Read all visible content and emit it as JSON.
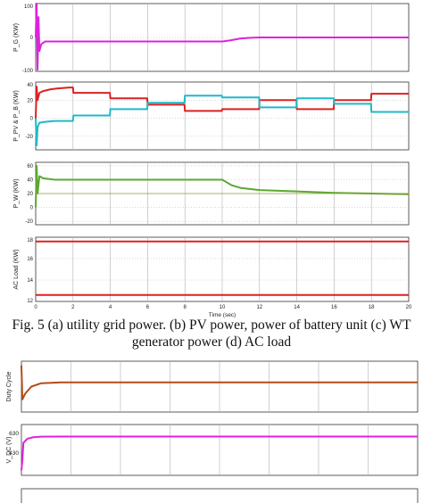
{
  "figure_top": {
    "xlabel": "Time (sec)",
    "xticks": [
      0,
      2,
      4,
      6,
      8,
      10,
      12,
      14,
      16,
      18,
      20
    ]
  },
  "caption": {
    "line1": "Fig. 5 (a) utility grid power. (b) PV power, power of battery unit (c) WT",
    "line2": "generator power (d) AC load"
  },
  "colors": {
    "magenta": "#e020e0",
    "red": "#dd2020",
    "cyan": "#20b8c8",
    "green": "#5aa832",
    "brown": "#b54a1a",
    "grid": "#b0b0b0",
    "axis": "#333333"
  },
  "chart_data": [
    {
      "type": "line",
      "ylabel": "P_G (KW)",
      "xlim": [
        0,
        20
      ],
      "ylim": [
        -100,
        100
      ],
      "yticks": [
        -100,
        0,
        100
      ],
      "series": [
        {
          "color": "magenta",
          "x": [
            0,
            0.05,
            0.1,
            0.15,
            0.2,
            0.3,
            0.5,
            2,
            4,
            6,
            8,
            10,
            10.5,
            11,
            11.5,
            12,
            14,
            16,
            18,
            20
          ],
          "y": [
            0,
            100,
            -95,
            60,
            -40,
            -20,
            -12,
            -12,
            -12,
            -12,
            -12,
            -12,
            -8,
            -3,
            -1,
            0,
            0,
            0,
            0,
            0
          ]
        }
      ]
    },
    {
      "type": "line",
      "ylabel": "P_PV & P_B (KW)",
      "xlim": [
        0,
        20
      ],
      "ylim": [
        -35,
        40
      ],
      "yticks": [
        -20,
        0,
        20,
        40
      ],
      "series": [
        {
          "color": "red",
          "x": [
            0,
            0.05,
            0.1,
            0.2,
            0.4,
            0.8,
            1.2,
            1.8,
            2,
            2.02,
            3.98,
            4,
            4.02,
            5.98,
            6,
            6.02,
            7.98,
            8,
            8.02,
            9.98,
            10,
            10.02,
            11.98,
            12,
            12.02,
            13.98,
            14,
            14.02,
            15.98,
            16,
            16.02,
            17.98,
            18,
            18.02,
            20
          ],
          "y": [
            0,
            35,
            20,
            28,
            30,
            32,
            33,
            34,
            34,
            28,
            28,
            22,
            22,
            22,
            15,
            15,
            15,
            8,
            8,
            8,
            10,
            10,
            10,
            20,
            20,
            20,
            10,
            10,
            10,
            20,
            20,
            20,
            27,
            27,
            27
          ]
        },
        {
          "color": "cyan",
          "x": [
            0,
            0.05,
            0.1,
            0.2,
            0.5,
            1,
            1.5,
            2,
            2.02,
            3.98,
            4,
            4.02,
            5.98,
            6,
            6.02,
            7.98,
            8,
            8.02,
            9.98,
            10,
            10.02,
            11.98,
            12,
            12.02,
            13.98,
            14,
            14.02,
            15.98,
            16,
            16.02,
            17.98,
            18,
            18.02,
            20
          ],
          "y": [
            0,
            -30,
            -10,
            -5,
            -4,
            -3,
            -3,
            -3,
            3,
            3,
            10,
            10,
            10,
            17,
            17,
            17,
            25,
            25,
            25,
            23,
            23,
            23,
            12,
            12,
            12,
            22,
            22,
            22,
            16,
            16,
            16,
            7,
            7,
            7
          ]
        }
      ]
    },
    {
      "type": "line",
      "ylabel": "P_W (KW)",
      "xlim": [
        0,
        20
      ],
      "ylim": [
        -25,
        65
      ],
      "yticks": [
        -20,
        0,
        20,
        40,
        60
      ],
      "series": [
        {
          "color": "green",
          "x": [
            0,
            0.05,
            0.1,
            0.2,
            0.4,
            1,
            2,
            4,
            6,
            8,
            10,
            10.5,
            11,
            12,
            14,
            16,
            18,
            20
          ],
          "y": [
            0,
            60,
            20,
            45,
            42,
            40,
            40,
            40,
            40,
            40,
            40,
            32,
            28,
            25,
            23,
            21,
            20,
            19
          ]
        },
        {
          "color": "olive",
          "x": [
            0,
            20
          ],
          "y": [
            20,
            20
          ]
        }
      ]
    },
    {
      "type": "line",
      "ylabel": "AC Load (KW)",
      "xlim": [
        0,
        20
      ],
      "ylim": [
        12,
        18
      ],
      "yticks": [
        12,
        14,
        16,
        18
      ],
      "series": [
        {
          "color": "red",
          "x": [
            0,
            20
          ],
          "y": [
            12.6,
            12.6
          ]
        },
        {
          "color": "red",
          "x": [
            0,
            20
          ],
          "y": [
            17.6,
            17.6
          ]
        }
      ]
    },
    {
      "type": "line",
      "ylabel": "Duty Cycle",
      "xlim": [
        0,
        20
      ],
      "ylim": [
        0,
        0.6
      ],
      "series": [
        {
          "color": "brown",
          "x": [
            0,
            0.05,
            0.2,
            0.5,
            1,
            2,
            4,
            6,
            8,
            10,
            12,
            14,
            16,
            18,
            20
          ],
          "y": [
            0.55,
            0.15,
            0.22,
            0.3,
            0.34,
            0.35,
            0.35,
            0.35,
            0.35,
            0.35,
            0.35,
            0.35,
            0.35,
            0.35,
            0.35
          ]
        }
      ]
    },
    {
      "type": "line",
      "ylabel": "V_DC (V)",
      "ytick_labels": [
        "630",
        "430"
      ],
      "xlim": [
        0,
        20
      ],
      "ylim": [
        200,
        700
      ],
      "series": [
        {
          "color": "magenta",
          "x": [
            0,
            0.05,
            0.1,
            0.3,
            0.6,
            1,
            2,
            4,
            6,
            8,
            10,
            12,
            14,
            16,
            18,
            20
          ],
          "y": [
            250,
            350,
            520,
            560,
            575,
            580,
            582,
            582,
            582,
            582,
            582,
            582,
            582,
            582,
            582,
            582
          ]
        }
      ]
    }
  ]
}
